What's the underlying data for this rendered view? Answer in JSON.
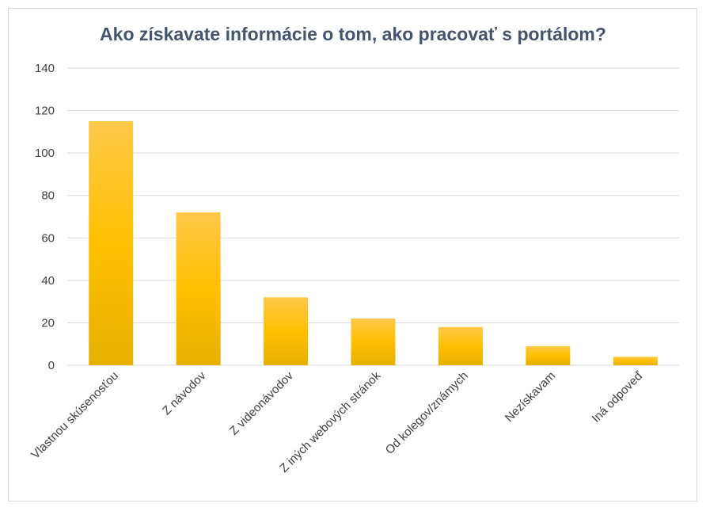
{
  "chart_data": {
    "type": "bar",
    "title": "Ako získavate informácie o tom, ako pracovať s portálom?",
    "categories": [
      "Vlastnou skúsenosťou",
      "Z návodov",
      "Z videonávodov",
      "Z iných webových stránok",
      "Od kolegov/známych",
      "Nezískavam",
      "Iná odpoveď"
    ],
    "values": [
      115,
      72,
      32,
      22,
      18,
      9,
      4
    ],
    "ylim": [
      0,
      140
    ],
    "yticks": [
      0,
      20,
      40,
      60,
      80,
      100,
      120,
      140
    ],
    "xlabel": "",
    "ylabel": "",
    "grid": true,
    "colors": {
      "bar_top": "#ffc84a",
      "bar_mid": "#ffc000",
      "bar_bottom": "#e6b000",
      "grid": "#d9d9d9",
      "title": "#44546a"
    }
  }
}
